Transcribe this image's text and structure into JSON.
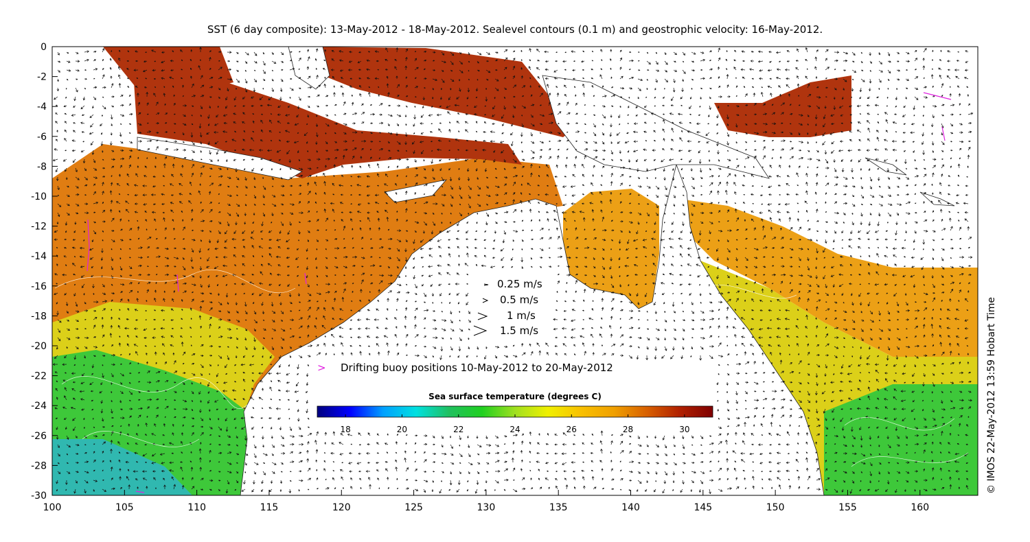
{
  "title": "SST (6 day composite): 13-May-2012 - 18-May-2012. Sealevel contours (0.1 m) and geostrophic velocity: 16-May-2012.",
  "credit": "© IMOS 22-May-2012 13:59 Hobart Time",
  "axes": {
    "x_ticks": [
      "100",
      "105",
      "110",
      "115",
      "120",
      "125",
      "130",
      "135",
      "140",
      "145",
      "150",
      "155",
      "160"
    ],
    "y_ticks": [
      "0",
      "-2",
      "-4",
      "-6",
      "-8",
      "-10",
      "-12",
      "-14",
      "-16",
      "-18",
      "-20",
      "-22",
      "-24",
      "-26",
      "-28",
      "-30"
    ],
    "xlim": [
      100,
      164
    ],
    "ylim": [
      -30,
      0
    ]
  },
  "velocity_legend": [
    {
      "label": "0.25 m/s",
      "speed": 0.25
    },
    {
      "label": "0.5 m/s",
      "speed": 0.5
    },
    {
      "label": "1 m/s",
      "speed": 1
    },
    {
      "label": "1.5 m/s",
      "speed": 1.5
    }
  ],
  "buoy_legend": {
    "symbol": ">",
    "label": "Drifting buoy positions 10-May-2012 to 20-May-2012",
    "color": "#e020e0"
  },
  "colorbar": {
    "title": "Sea surface temperature (degrees C)",
    "range": [
      17,
      31
    ],
    "ticks": [
      "18",
      "20",
      "22",
      "24",
      "26",
      "28",
      "30"
    ],
    "colors": [
      "#00007f",
      "#0000ff",
      "#00a0ff",
      "#00e0e0",
      "#20c060",
      "#20d020",
      "#a0e020",
      "#f0f000",
      "#f8c000",
      "#f0a000",
      "#d86000",
      "#b02000",
      "#7f0000"
    ]
  },
  "sst_colors": {
    "hot": "#b0340e",
    "warm": "#e07d12",
    "mid": "#eca016",
    "mild": "#dcd019",
    "cool": "#3ec83a",
    "cold": "#30b8b0",
    "land": "#ffffff"
  }
}
